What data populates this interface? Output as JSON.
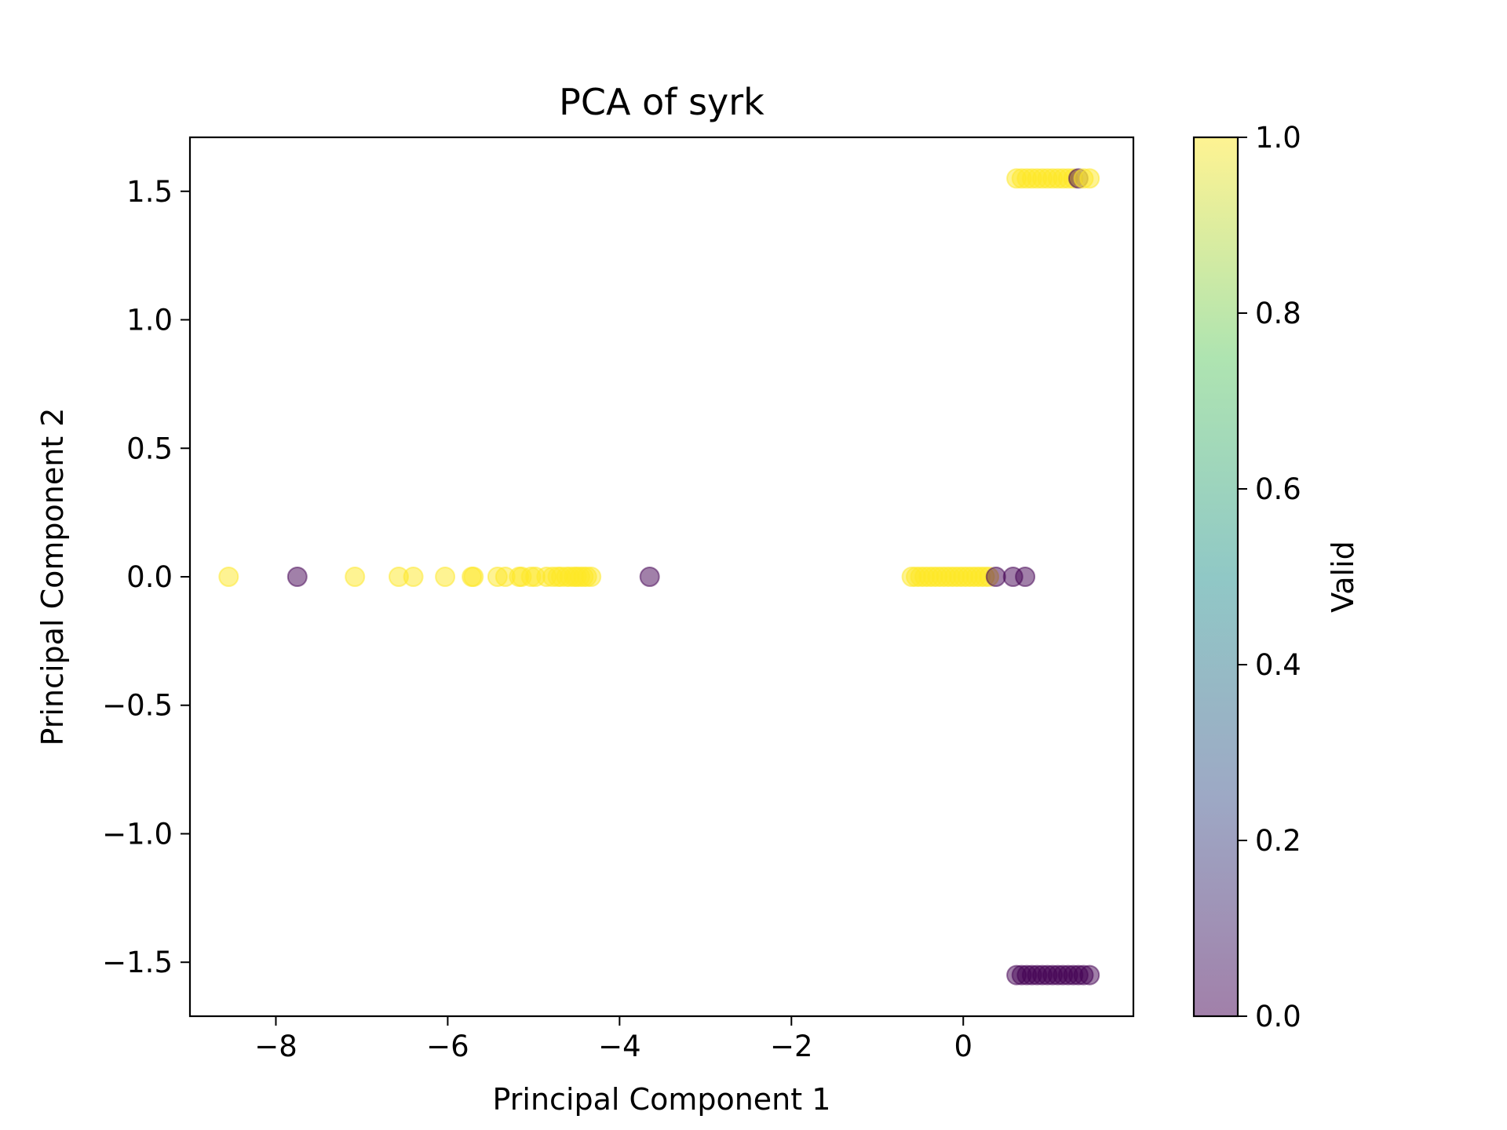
{
  "chart_data": {
    "type": "scatter",
    "title": "PCA of syrk",
    "xlabel": "Principal Component 1",
    "ylabel": "Principal Component 2",
    "xlim": [
      -9.0,
      1.98
    ],
    "ylim": [
      -1.71,
      1.71
    ],
    "xticks": [
      -8,
      -6,
      -4,
      -2,
      0
    ],
    "yticks": [
      -1.5,
      -1.0,
      -0.5,
      0.0,
      0.5,
      1.0,
      1.5
    ],
    "xtick_labels": [
      "−8",
      "−6",
      "−4",
      "−2",
      "0"
    ],
    "ytick_labels": [
      "−1.5",
      "−1.0",
      "−0.5",
      "0.0",
      "0.5",
      "1.0",
      "1.5"
    ],
    "grid": false,
    "alpha": 0.5,
    "colormap": "viridis",
    "colorbar": {
      "label": "Valid",
      "range": [
        0.0,
        1.0
      ],
      "ticks": [
        0.0,
        0.2,
        0.4,
        0.6,
        0.8,
        1.0
      ],
      "tick_labels": [
        "0.0",
        "0.2",
        "0.4",
        "0.6",
        "0.8",
        "1.0"
      ],
      "colors": {
        "0": "#440154",
        "0.25": "#3b528b",
        "0.5": "#21918c",
        "0.75": "#5ec962",
        "1": "#fde725"
      }
    },
    "points": [
      {
        "x": -8.55,
        "y": 0.0,
        "valid": 1
      },
      {
        "x": -7.75,
        "y": 0.0,
        "valid": 0
      },
      {
        "x": -7.08,
        "y": 0.0,
        "valid": 1
      },
      {
        "x": -6.57,
        "y": 0.0,
        "valid": 1
      },
      {
        "x": -6.4,
        "y": 0.0,
        "valid": 1
      },
      {
        "x": -6.03,
        "y": 0.0,
        "valid": 1
      },
      {
        "x": -5.72,
        "y": 0.0,
        "valid": 1
      },
      {
        "x": -5.7,
        "y": 0.0,
        "valid": 1
      },
      {
        "x": -5.42,
        "y": 0.0,
        "valid": 1
      },
      {
        "x": -5.33,
        "y": 0.0,
        "valid": 1
      },
      {
        "x": -5.17,
        "y": 0.0,
        "valid": 1
      },
      {
        "x": -5.14,
        "y": 0.0,
        "valid": 1
      },
      {
        "x": -5.03,
        "y": 0.0,
        "valid": 1
      },
      {
        "x": -4.98,
        "y": 0.0,
        "valid": 1
      },
      {
        "x": -4.85,
        "y": 0.0,
        "valid": 1
      },
      {
        "x": -4.78,
        "y": 0.0,
        "valid": 1
      },
      {
        "x": -4.72,
        "y": 0.0,
        "valid": 1
      },
      {
        "x": -4.68,
        "y": 0.0,
        "valid": 1
      },
      {
        "x": -4.62,
        "y": 0.0,
        "valid": 1
      },
      {
        "x": -4.58,
        "y": 0.0,
        "valid": 1
      },
      {
        "x": -4.53,
        "y": 0.0,
        "valid": 1
      },
      {
        "x": -4.5,
        "y": 0.0,
        "valid": 1
      },
      {
        "x": -4.46,
        "y": 0.0,
        "valid": 1
      },
      {
        "x": -4.42,
        "y": 0.0,
        "valid": 1
      },
      {
        "x": -4.38,
        "y": 0.0,
        "valid": 1
      },
      {
        "x": -4.33,
        "y": 0.0,
        "valid": 1
      },
      {
        "x": -3.65,
        "y": 0.0,
        "valid": 0
      },
      {
        "x": -0.6,
        "y": 0.0,
        "valid": 1
      },
      {
        "x": -0.55,
        "y": 0.0,
        "valid": 1
      },
      {
        "x": -0.5,
        "y": 0.0,
        "valid": 1
      },
      {
        "x": -0.45,
        "y": 0.0,
        "valid": 1
      },
      {
        "x": -0.4,
        "y": 0.0,
        "valid": 1
      },
      {
        "x": -0.35,
        "y": 0.0,
        "valid": 1
      },
      {
        "x": -0.3,
        "y": 0.0,
        "valid": 1
      },
      {
        "x": -0.25,
        "y": 0.0,
        "valid": 1
      },
      {
        "x": -0.2,
        "y": 0.0,
        "valid": 1
      },
      {
        "x": -0.15,
        "y": 0.0,
        "valid": 1
      },
      {
        "x": -0.1,
        "y": 0.0,
        "valid": 1
      },
      {
        "x": -0.05,
        "y": 0.0,
        "valid": 1
      },
      {
        "x": 0.0,
        "y": 0.0,
        "valid": 1
      },
      {
        "x": 0.05,
        "y": 0.0,
        "valid": 1
      },
      {
        "x": 0.1,
        "y": 0.0,
        "valid": 1
      },
      {
        "x": 0.15,
        "y": 0.0,
        "valid": 1
      },
      {
        "x": 0.2,
        "y": 0.0,
        "valid": 1
      },
      {
        "x": 0.25,
        "y": 0.0,
        "valid": 1
      },
      {
        "x": 0.3,
        "y": 0.0,
        "valid": 1
      },
      {
        "x": 0.38,
        "y": 0.0,
        "valid": 0
      },
      {
        "x": 0.58,
        "y": 0.0,
        "valid": 0
      },
      {
        "x": 0.72,
        "y": 0.0,
        "valid": 0
      },
      {
        "x": 0.62,
        "y": 1.55,
        "valid": 1
      },
      {
        "x": 0.68,
        "y": 1.55,
        "valid": 1
      },
      {
        "x": 0.74,
        "y": 1.55,
        "valid": 1
      },
      {
        "x": 0.8,
        "y": 1.55,
        "valid": 1
      },
      {
        "x": 0.86,
        "y": 1.55,
        "valid": 1
      },
      {
        "x": 0.92,
        "y": 1.55,
        "valid": 1
      },
      {
        "x": 0.98,
        "y": 1.55,
        "valid": 1
      },
      {
        "x": 1.04,
        "y": 1.55,
        "valid": 1
      },
      {
        "x": 1.1,
        "y": 1.55,
        "valid": 1
      },
      {
        "x": 1.16,
        "y": 1.55,
        "valid": 1
      },
      {
        "x": 1.22,
        "y": 1.55,
        "valid": 1
      },
      {
        "x": 1.28,
        "y": 1.55,
        "valid": 1
      },
      {
        "x": 1.34,
        "y": 1.55,
        "valid": 0
      },
      {
        "x": 1.4,
        "y": 1.55,
        "valid": 1
      },
      {
        "x": 1.47,
        "y": 1.55,
        "valid": 1
      },
      {
        "x": 0.62,
        "y": -1.55,
        "valid": 0
      },
      {
        "x": 0.68,
        "y": -1.55,
        "valid": 0
      },
      {
        "x": 0.74,
        "y": -1.55,
        "valid": 0
      },
      {
        "x": 0.8,
        "y": -1.55,
        "valid": 0
      },
      {
        "x": 0.86,
        "y": -1.55,
        "valid": 0
      },
      {
        "x": 0.92,
        "y": -1.55,
        "valid": 0
      },
      {
        "x": 0.98,
        "y": -1.55,
        "valid": 0
      },
      {
        "x": 1.04,
        "y": -1.55,
        "valid": 0
      },
      {
        "x": 1.1,
        "y": -1.55,
        "valid": 0
      },
      {
        "x": 1.16,
        "y": -1.55,
        "valid": 0
      },
      {
        "x": 1.22,
        "y": -1.55,
        "valid": 0
      },
      {
        "x": 1.28,
        "y": -1.55,
        "valid": 0
      },
      {
        "x": 1.34,
        "y": -1.55,
        "valid": 0
      },
      {
        "x": 1.4,
        "y": -1.55,
        "valid": 0
      },
      {
        "x": 1.47,
        "y": -1.55,
        "valid": 0
      }
    ]
  }
}
